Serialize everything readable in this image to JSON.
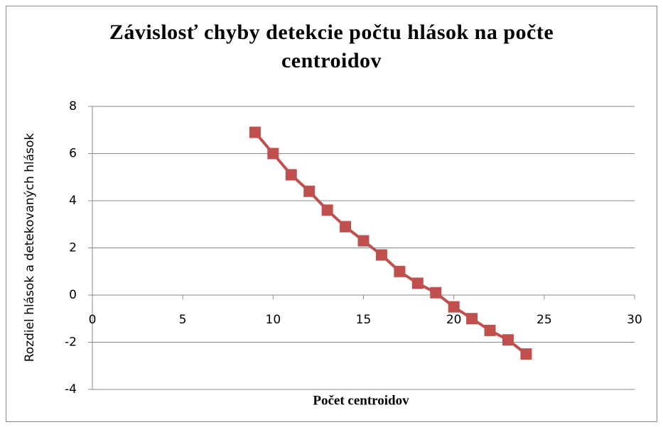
{
  "chart_data": {
    "type": "line",
    "title": "Závislosť chyby detekcie počtu hlások na počte centroidov",
    "x_label": "Počet centroidov",
    "y_label": "Rozdiel hlások a detekovaných hlások",
    "series": [
      {
        "name": null,
        "color": "#c0504d",
        "x": [
          9,
          10,
          11,
          12,
          13,
          14,
          15,
          16,
          17,
          18,
          19,
          20,
          21,
          22,
          23,
          24
        ],
        "values": [
          6.9,
          6.0,
          5.1,
          4.4,
          3.6,
          2.9,
          2.3,
          1.7,
          1.0,
          0.5,
          0.1,
          -0.5,
          -1.0,
          -1.5,
          -1.9,
          -2.5
        ]
      }
    ],
    "xlim": [
      0,
      30
    ],
    "xticks": [
      0,
      5,
      10,
      15,
      20,
      25,
      30
    ],
    "ylim": [
      -4,
      8
    ],
    "yticks": [
      -4,
      -2,
      0,
      2,
      4,
      6,
      8
    ],
    "grid": true,
    "marker": "square"
  }
}
